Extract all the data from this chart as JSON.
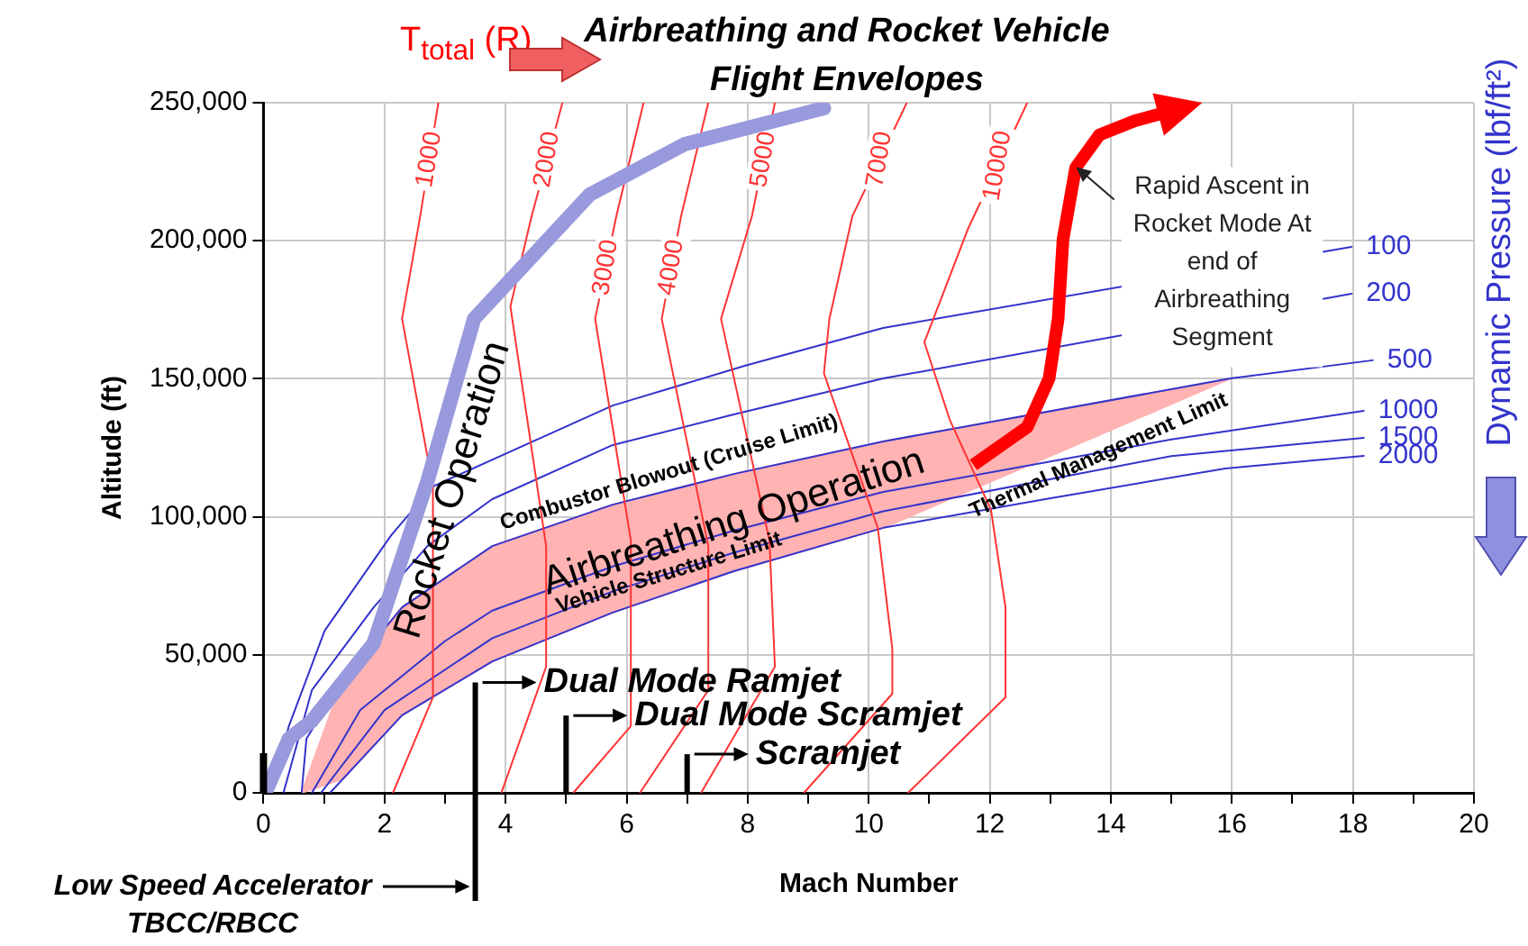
{
  "chart_data": {
    "type": "line",
    "title": "Airbreathing and Rocket Vehicle Flight Envelopes",
    "xlabel": "Mach Number",
    "ylabel": "Altitude (ft)",
    "y2label": "Dynamic Pressure (lbf/ft²)",
    "xlim": [
      0,
      20
    ],
    "ylim": [
      0,
      250000
    ],
    "xticks": [
      0,
      {
        "value": 1,
        "label": null
      },
      2,
      {
        "value": 3,
        "label": null
      },
      4,
      {
        "value": 5,
        "label": null
      },
      6,
      {
        "value": 7,
        "label": null
      },
      8,
      {
        "value": 9,
        "label": null
      },
      10,
      {
        "value": 11,
        "label": null
      },
      12,
      {
        "value": 13,
        "label": null
      },
      14,
      {
        "value": 15,
        "label": null
      },
      16,
      {
        "value": 17,
        "label": null
      },
      18,
      {
        "value": 19,
        "label": null
      },
      20
    ],
    "yticks": [
      {
        "value": 0,
        "label": "0"
      },
      {
        "value": 50000,
        "label": "50,000"
      },
      {
        "value": 100000,
        "label": "100,000"
      },
      {
        "value": 150000,
        "label": "150,000"
      },
      {
        "value": 200000,
        "label": "200,000"
      },
      {
        "value": 250000,
        "label": "250,000"
      }
    ],
    "grid": true,
    "legend": false,
    "marker": "none",
    "line_style": "solid",
    "series": [
      {
        "type": "area",
        "color": "#ffb3b3",
        "x": [
          0.63,
          1.31,
          2.29,
          3.78,
          5.77,
          7.77,
          10.24,
          15.98
        ],
        "values": [
          null,
          null,
          null,
          null,
          null,
          null,
          null,
          null
        ],
        "upper": [
          0,
          41100,
          67200,
          89400,
          104400,
          115500,
          127300,
          150100
        ],
        "lower": [
          0,
          5000,
          28100,
          47600,
          65300,
          80300,
          96000,
          150100
        ]
      },
      {
        "name": "100",
        "color": "#3333cc",
        "x": [
          0.12,
          0.42,
          1.01,
          2.11,
          2.8,
          5.77,
          7.95,
          10.24,
          17.98
        ],
        "values": [
          0,
          24200,
          58700,
          93300,
          111000,
          140300,
          154700,
          168400,
          197800
        ]
      },
      {
        "name": "200",
        "color": "#3333cc",
        "x": [
          0.33,
          0.8,
          1.82,
          2.71,
          3.78,
          5.77,
          7.77,
          10.24,
          17.98
        ],
        "values": [
          0,
          37200,
          67200,
          89400,
          106400,
          126000,
          137100,
          150100,
          180800
        ]
      },
      {
        "name": "500",
        "color": "#3333cc",
        "x": [
          0.63,
          0.71,
          1.31,
          2.29,
          3.78,
          5.77,
          7.77,
          10.24,
          15.98,
          18.33
        ],
        "values": [
          0,
          19600,
          41100,
          67200,
          89400,
          104400,
          115500,
          127300,
          150100,
          156700
        ]
      },
      {
        "name": "1000",
        "color": "#3333cc",
        "x": [
          0.8,
          1.6,
          3.0,
          3.78,
          5.77,
          7.77,
          10.24,
          15.0,
          18.18
        ],
        "values": [
          0,
          30000,
          55000,
          66000,
          82000,
          95000,
          109000,
          128000,
          138400
        ]
      },
      {
        "name": "1500",
        "color": "#3333cc",
        "x": [
          0.95,
          2.0,
          3.78,
          5.77,
          7.77,
          10.24,
          15.0,
          18.18
        ],
        "values": [
          0,
          30000,
          56000,
          73000,
          87000,
          102000,
          122000,
          128600
        ]
      },
      {
        "name": "2000",
        "color": "#3333cc",
        "x": [
          1.1,
          2.29,
          3.78,
          5.77,
          7.77,
          10.24,
          12.92,
          15.89,
          18.18
        ],
        "values": [
          0,
          28100,
          47600,
          65300,
          80300,
          96000,
          106400,
          117500,
          122100
        ]
      },
      {
        "name": "1000",
        "color": "#ff3333",
        "x": [
          2.14,
          2.8,
          2.8,
          2.29,
          2.59,
          2.89
        ],
        "values": [
          0,
          34600,
          111000,
          171700,
          208900,
          250000
        ]
      },
      {
        "name": "2000",
        "color": "#ff3333",
        "x": [
          3.93,
          4.67,
          4.67,
          4.08,
          4.43,
          4.94
        ],
        "values": [
          0,
          45700,
          89400,
          176200,
          208900,
          250000
        ]
      },
      {
        "name": "3000",
        "color": "#ff3333",
        "x": [
          5.12,
          6.07,
          6.07,
          5.48,
          5.83,
          6.28
        ],
        "values": [
          0,
          24200,
          91400,
          171700,
          208900,
          250000
        ]
      },
      {
        "name": "4000",
        "color": "#ff3333",
        "x": [
          6.22,
          7.35,
          7.35,
          6.58,
          6.9,
          7.35
        ],
        "values": [
          0,
          37200,
          89400,
          171700,
          208900,
          250000
        ]
      },
      {
        "name": "5000",
        "color": "#ff3333",
        "x": [
          7.23,
          8.45,
          8.36,
          7.56,
          8.07,
          8.45
        ],
        "values": [
          0,
          45700,
          91400,
          171700,
          208900,
          250000
        ]
      },
      {
        "name": "7000",
        "color": "#ff3333",
        "x": [
          8.93,
          10.39,
          10.39,
          10.15,
          9.26,
          9.35,
          9.73,
          10.63
        ],
        "values": [
          0,
          35900,
          52200,
          96000,
          152000,
          171700,
          208900,
          250000
        ]
      },
      {
        "name": "10000",
        "color": "#ff3333",
        "x": [
          10.65,
          12.26,
          12.26,
          12.02,
          11.34,
          10.92,
          11.64,
          12.62
        ],
        "values": [
          0,
          34600,
          67200,
          102500,
          135100,
          163200,
          204300,
          250000
        ]
      },
      {
        "name": "Rocket Operation",
        "color": "#9999dd",
        "x": [
          0.03,
          0.42,
          0.8,
          1.82,
          2.71,
          3.48,
          5.39,
          6.96,
          9.26
        ],
        "values": [
          0,
          19600,
          26100,
          54200,
          112900,
          171700,
          216700,
          235000,
          248000
        ]
      }
    ],
    "annotations": [
      "T$_{total}$ (R)",
      "Combustor Blowout (Cruise Limit)",
      "Vehicle Structure Limit",
      "Thermal Management Limit",
      "Rapid Ascent in Rocket Mode At end of Airbreathing Segment",
      "Dual Mode Ramjet",
      "Dual Mode Scramjet",
      "Scramjet",
      "Low Speed Accelerator TBCC/RBCC",
      "Airbreathing Operation"
    ]
  }
}
